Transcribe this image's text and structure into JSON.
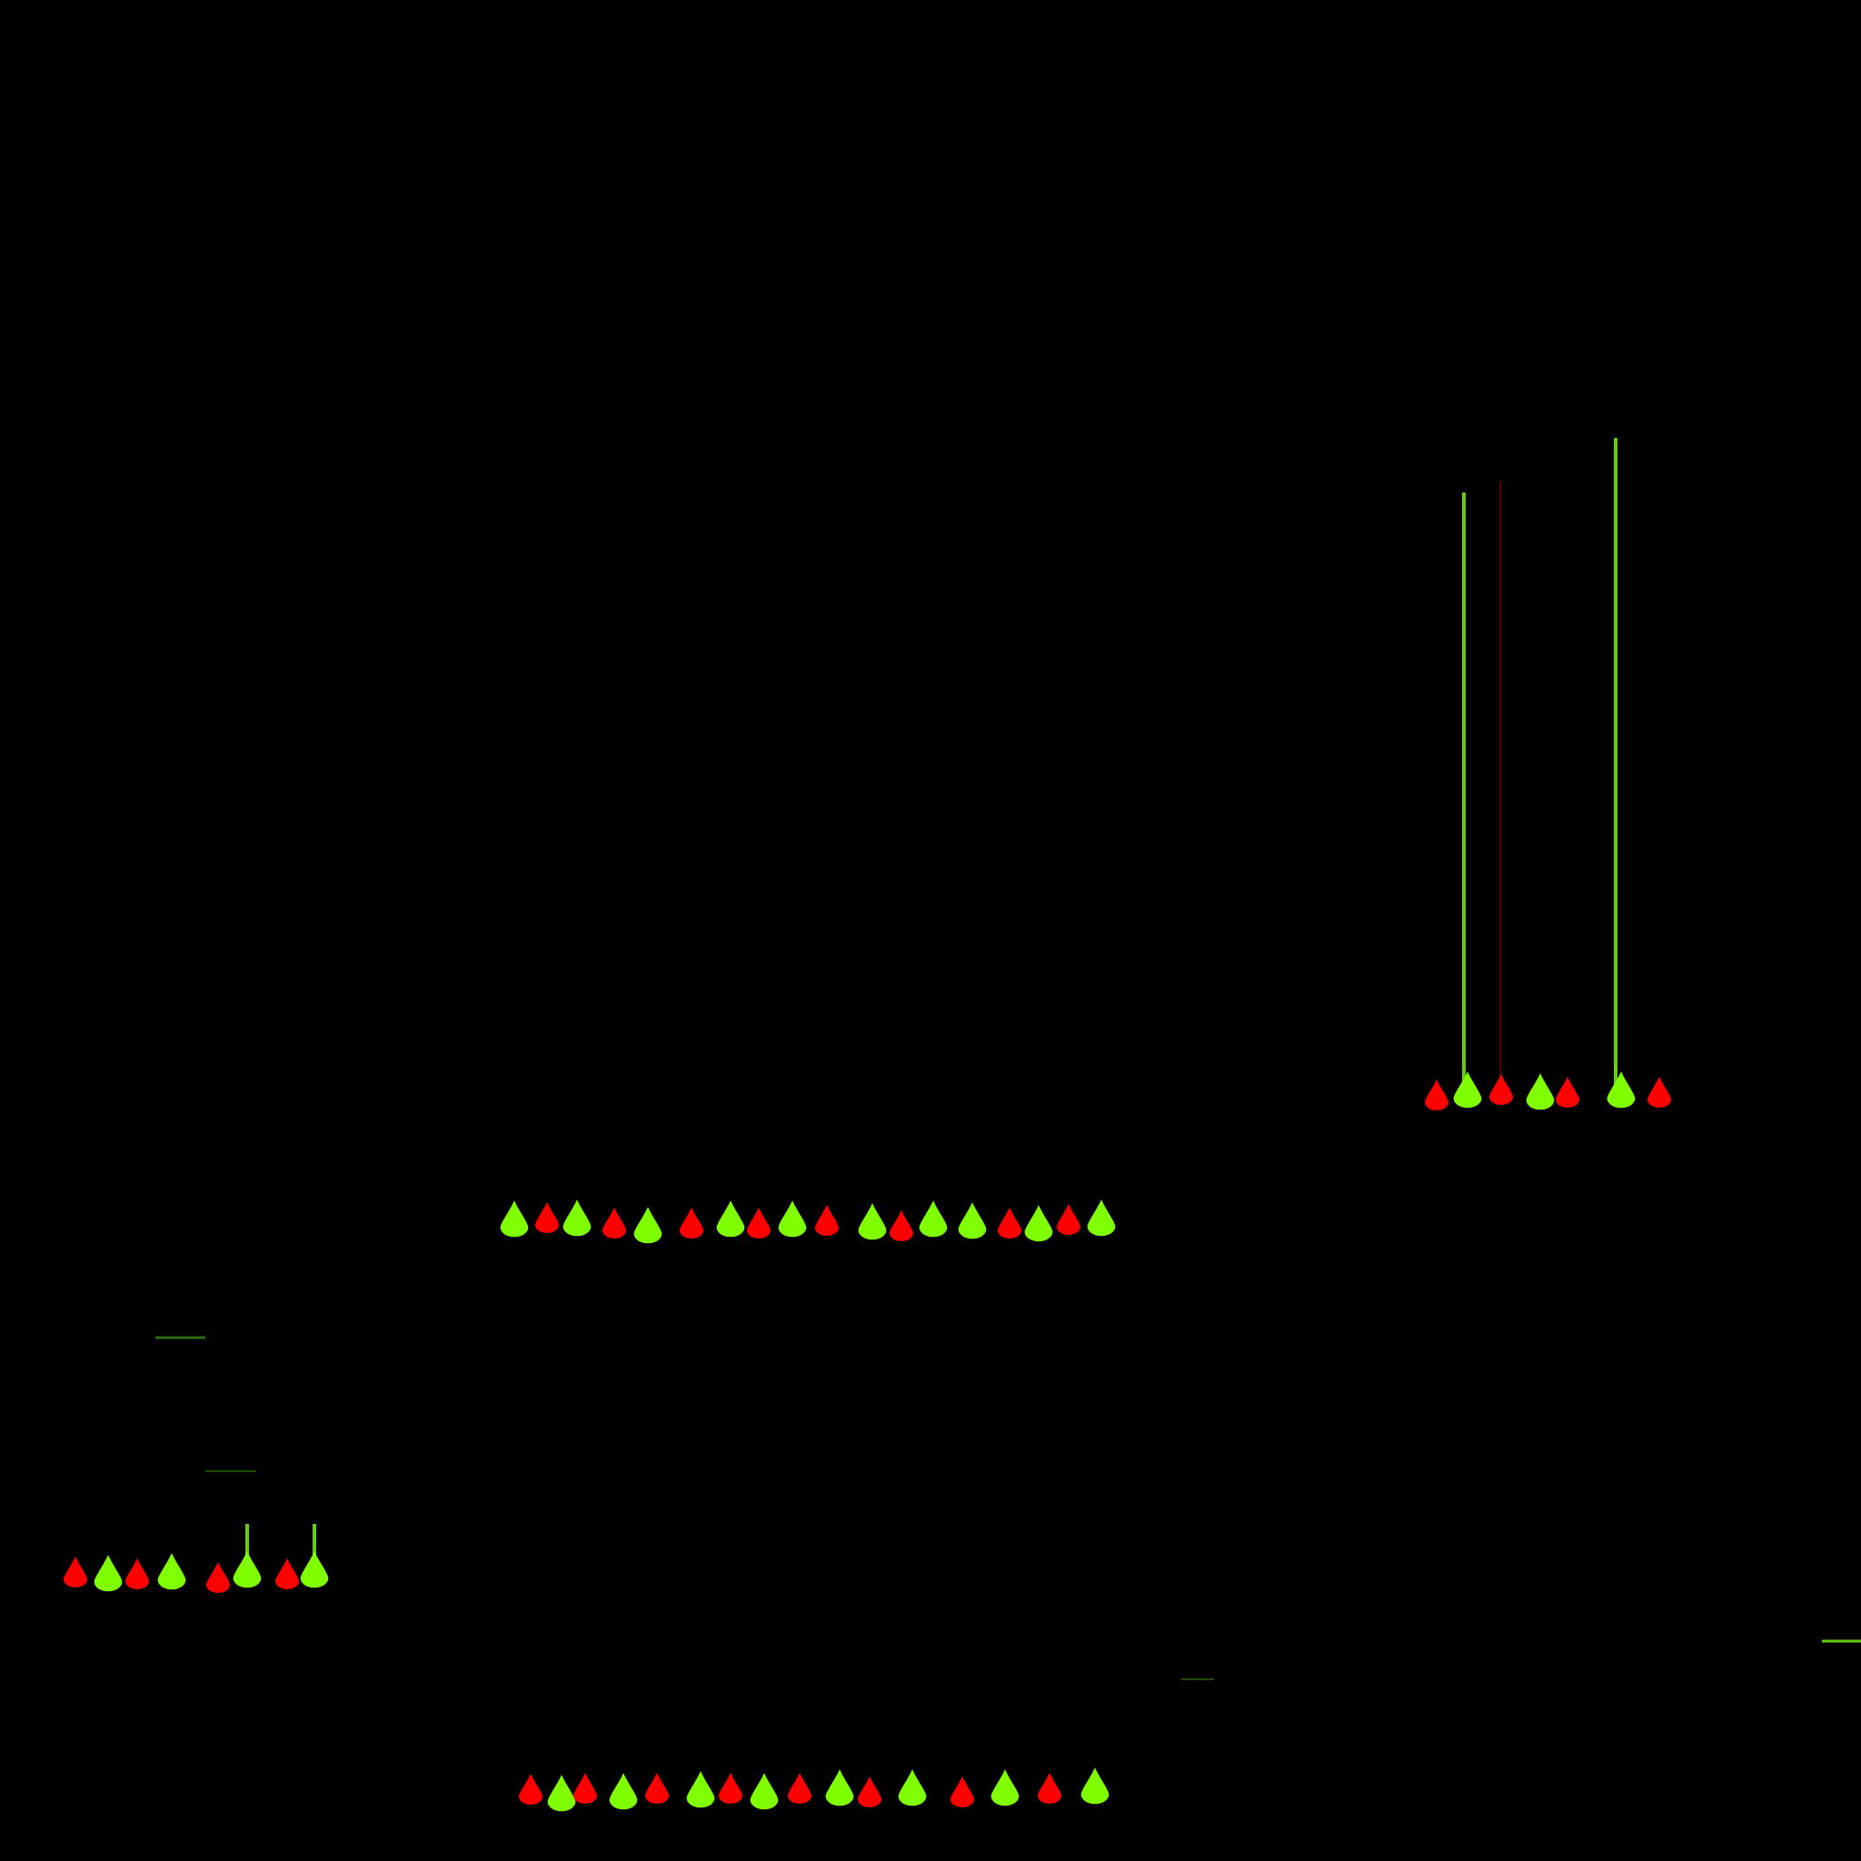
{
  "screen": {
    "background_color": "#000000"
  },
  "colors": {
    "red_drop": "#ff0000",
    "green_drop": "#7fff00",
    "green_beam": "#66cc11",
    "red_beam": "#550000",
    "dim_green_line": "#2f6b08"
  },
  "drop_icon": "teardrop-icon",
  "drop_groups": [
    {
      "name": "upper-right-cluster",
      "sequence": [
        "red",
        "green",
        "red",
        "green",
        "red",
        "green",
        "red"
      ]
    },
    {
      "name": "middle-row",
      "sequence": [
        "green",
        "red",
        "green",
        "red",
        "green",
        "red",
        "green",
        "red",
        "green",
        "red",
        "green",
        "red",
        "green",
        "green",
        "red",
        "green",
        "red",
        "green"
      ]
    },
    {
      "name": "left-cluster",
      "sequence": [
        "red",
        "green",
        "red",
        "green",
        "red",
        "green",
        "red",
        "green"
      ]
    },
    {
      "name": "bottom-row",
      "sequence": [
        "red",
        "green",
        "red",
        "green",
        "red",
        "green",
        "red",
        "green",
        "red",
        "green",
        "red",
        "green",
        "red",
        "green",
        "red",
        "green"
      ]
    }
  ]
}
